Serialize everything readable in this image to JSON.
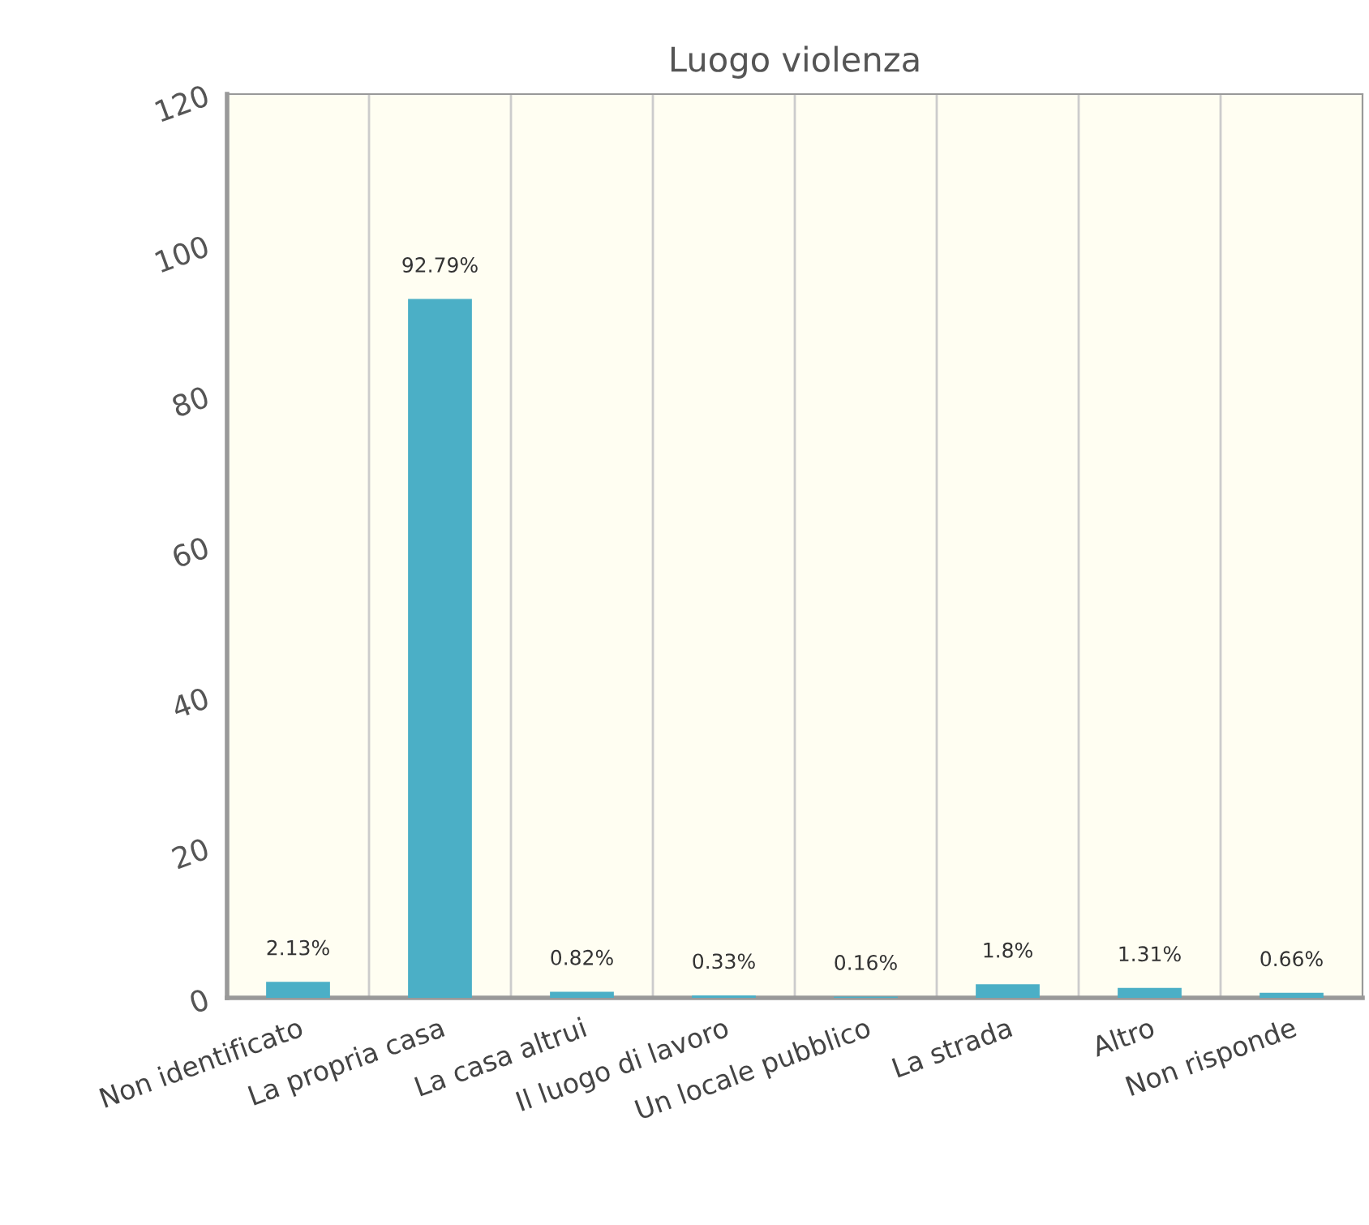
{
  "chart_data": {
    "type": "bar",
    "title": "Luogo violenza",
    "categories": [
      "Non identificato",
      "La propria casa",
      "La casa altrui",
      "Il luogo di lavoro",
      "Un locale pubblico",
      "La strada",
      "Altro",
      "Non risponde"
    ],
    "values": [
      2.13,
      92.79,
      0.82,
      0.33,
      0.16,
      1.8,
      1.31,
      0.66
    ],
    "value_labels": [
      "2.13%",
      "92.79%",
      "0.82%",
      "0.33%",
      "0.16%",
      "1.8%",
      "1.31%",
      "0.66%"
    ],
    "color": "#4bafc6",
    "ylim": [
      0,
      120
    ],
    "yticks": [
      0,
      20,
      40,
      60,
      80,
      100,
      120
    ],
    "grid": "x",
    "legend": false
  }
}
